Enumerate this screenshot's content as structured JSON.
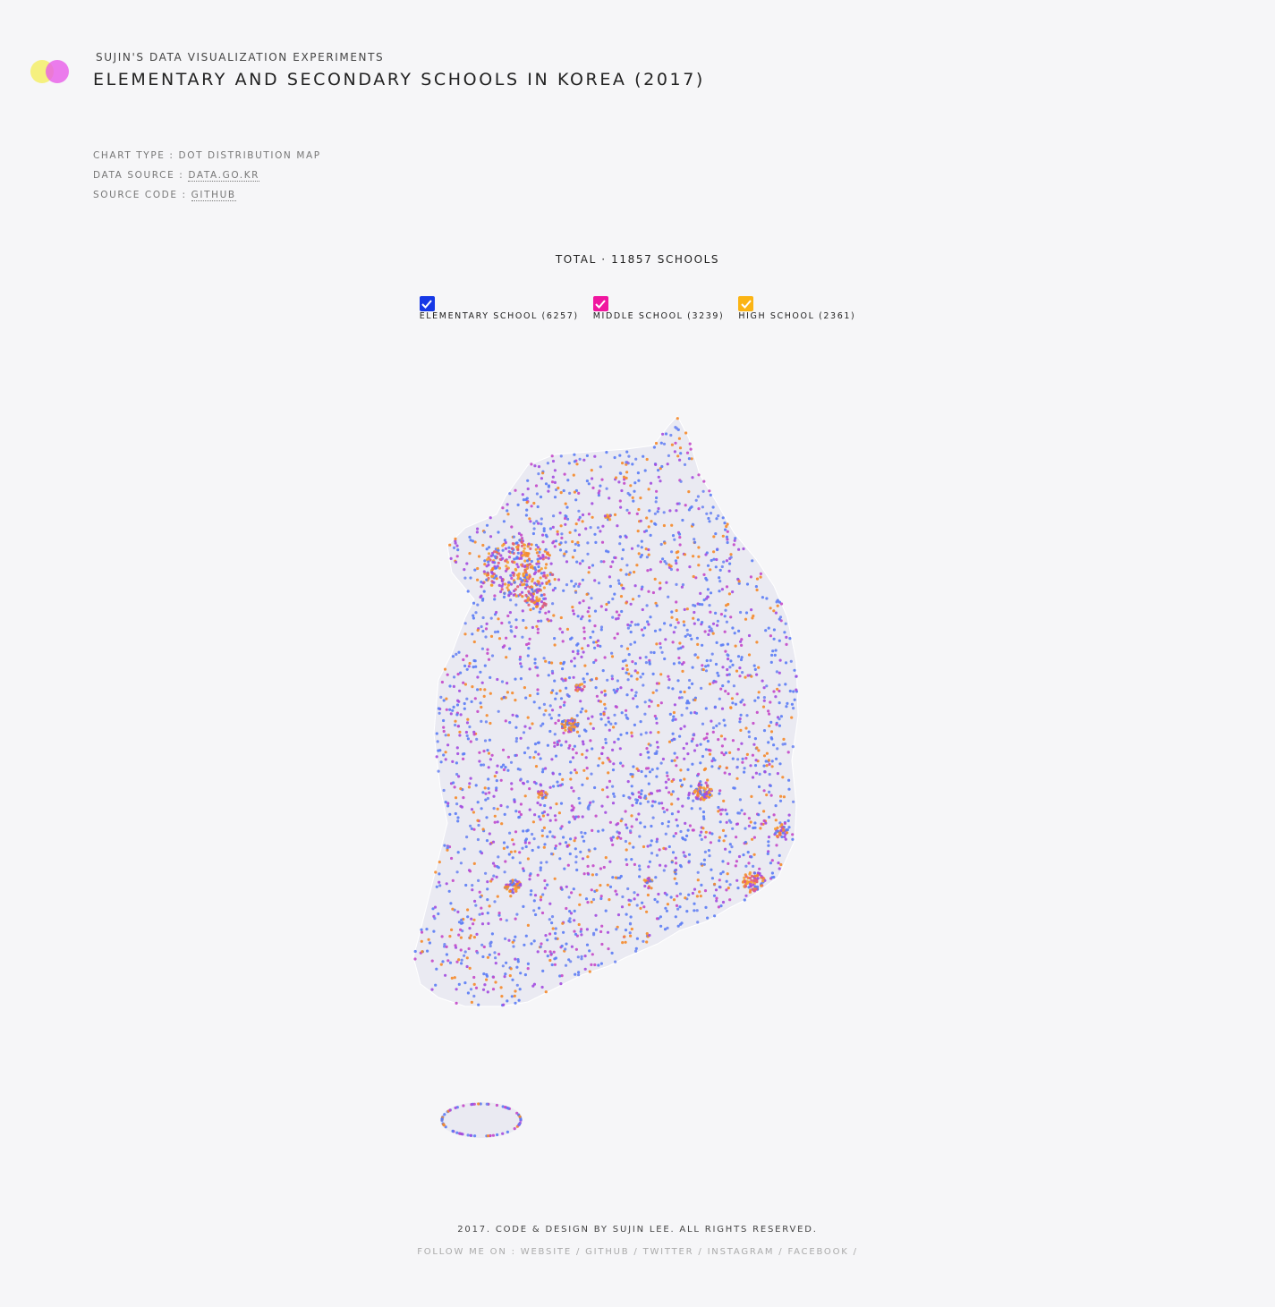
{
  "header": {
    "subtitle": "SUJIN'S DATA VISUALIZATION EXPERIMENTS",
    "title": "ELEMENTARY AND SECONDARY SCHOOLS IN KOREA (2017)"
  },
  "meta": [
    {
      "label": "CHART TYPE :",
      "value": "DOT DISTRIBUTION MAP"
    },
    {
      "label": "DATA SOURCE :",
      "value": "DATA.GO.KR"
    },
    {
      "label": "SOURCE CODE :",
      "value": "GITHUB"
    }
  ],
  "total": "TOTAL · 11857 SCHOOLS",
  "legend": [
    {
      "label": "ELEMENTARY SCHOOL (6257)",
      "color": "#1638e6"
    },
    {
      "label": "MIDDLE SCHOOL (3239)",
      "color": "#f0169f"
    },
    {
      "label": "HIGH SCHOOL (2361)",
      "color": "#fbb414"
    }
  ],
  "footer": {
    "credit": "2017. CODE & DESIGN BY SUJIN LEE. ALL RIGHTS RESERVED.",
    "follow": "FOLLOW ME ON :",
    "links": [
      "WEBSITE",
      "GITHUB",
      "TWITTER",
      "INSTAGRAM",
      "FACEBOOK"
    ],
    "separator": "/"
  }
}
